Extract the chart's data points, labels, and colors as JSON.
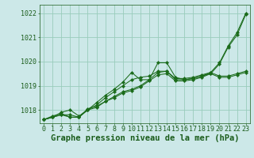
{
  "title": "Graphe pression niveau de la mer (hPa)",
  "background_color": "#cce8e8",
  "grid_color": "#99ccbb",
  "line_color": "#1a6b1a",
  "marker_color": "#1a6b1a",
  "ylim": [
    1017.45,
    1022.35
  ],
  "xlim": [
    -0.5,
    23.5
  ],
  "yticks": [
    1018,
    1019,
    1020,
    1021,
    1022
  ],
  "xticks": [
    0,
    1,
    2,
    3,
    4,
    5,
    6,
    7,
    8,
    9,
    10,
    11,
    12,
    13,
    14,
    15,
    16,
    17,
    18,
    19,
    20,
    21,
    22,
    23
  ],
  "series": [
    [
      1017.6,
      1017.7,
      1017.8,
      1017.8,
      1017.7,
      1018.0,
      1018.3,
      1018.6,
      1018.85,
      1019.15,
      1019.55,
      1019.25,
      1019.25,
      1019.95,
      1019.95,
      1019.35,
      1019.25,
      1019.3,
      1019.4,
      1019.5,
      1019.9,
      1020.6,
      1021.1,
      1021.95
    ],
    [
      1017.6,
      1017.7,
      1017.8,
      1017.7,
      1017.7,
      1018.0,
      1018.1,
      1018.35,
      1018.55,
      1018.75,
      1018.85,
      1019.0,
      1019.25,
      1019.55,
      1019.6,
      1019.25,
      1019.25,
      1019.3,
      1019.4,
      1019.55,
      1019.4,
      1019.4,
      1019.5,
      1019.6
    ],
    [
      1017.6,
      1017.7,
      1017.9,
      1018.0,
      1017.75,
      1018.0,
      1018.2,
      1018.5,
      1018.75,
      1019.0,
      1019.25,
      1019.35,
      1019.4,
      1019.6,
      1019.6,
      1019.3,
      1019.3,
      1019.35,
      1019.45,
      1019.55,
      1019.95,
      1020.65,
      1021.2,
      1022.0
    ],
    [
      1017.6,
      1017.75,
      1017.85,
      1017.7,
      1017.7,
      1018.05,
      1018.15,
      1018.35,
      1018.5,
      1018.7,
      1018.8,
      1018.95,
      1019.2,
      1019.45,
      1019.5,
      1019.2,
      1019.2,
      1019.25,
      1019.35,
      1019.5,
      1019.35,
      1019.35,
      1019.45,
      1019.55
    ]
  ],
  "title_fontsize": 7.5,
  "tick_fontsize": 6.0,
  "title_color": "#1a5c1a",
  "tick_color": "#1a5c1a"
}
